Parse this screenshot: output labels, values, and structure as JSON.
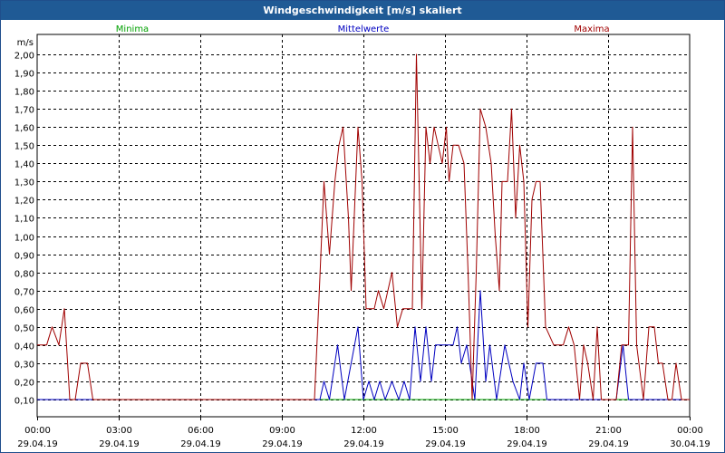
{
  "window": {
    "title": "Windgeschwindigkeit [m/s] skaliert"
  },
  "colors": {
    "minima": "#00a000",
    "mittel": "#0000c0",
    "maxima": "#a00000",
    "grid": "#000000",
    "titlebar": "#1f5a95"
  },
  "chart_data": {
    "type": "line",
    "title": "Windgeschwindigkeit [m/s] skaliert",
    "ylabel": "m/s",
    "ylim": [
      0,
      2.05
    ],
    "xlim": [
      0,
      24
    ],
    "grid": true,
    "legend_placement": "top",
    "y_ticks": [
      "0,10",
      "0,20",
      "0,30",
      "0,40",
      "0,50",
      "0,60",
      "0,70",
      "0,80",
      "0,90",
      "1,00",
      "1,10",
      "1,20",
      "1,30",
      "1,40",
      "1,50",
      "1,60",
      "1,70",
      "1,80",
      "1,90",
      "2,00"
    ],
    "x_ticks": [
      {
        "time": "00:00",
        "date": "29.04.19"
      },
      {
        "time": "03:00",
        "date": "29.04.19"
      },
      {
        "time": "06:00",
        "date": "29.04.19"
      },
      {
        "time": "09:00",
        "date": "29.04.19"
      },
      {
        "time": "12:00",
        "date": "29.04.19"
      },
      {
        "time": "15:00",
        "date": "29.04.19"
      },
      {
        "time": "18:00",
        "date": "29.04.19"
      },
      {
        "time": "21:00",
        "date": "29.04.19"
      },
      {
        "time": "00:00",
        "date": "30.04.19"
      }
    ],
    "series": [
      {
        "name": "Minima",
        "color": "#00a000",
        "points": [
          [
            0,
            0.1
          ],
          [
            24,
            0.1
          ]
        ]
      },
      {
        "name": "Mittelwerte",
        "color": "#0000c0",
        "points": [
          [
            0,
            0.1
          ],
          [
            10.4,
            0.1
          ],
          [
            10.55,
            0.2
          ],
          [
            10.75,
            0.1
          ],
          [
            11.05,
            0.4
          ],
          [
            11.3,
            0.1
          ],
          [
            11.55,
            0.3
          ],
          [
            11.8,
            0.5
          ],
          [
            12.0,
            0.1
          ],
          [
            12.2,
            0.2
          ],
          [
            12.4,
            0.1
          ],
          [
            12.6,
            0.2
          ],
          [
            12.8,
            0.1
          ],
          [
            13.05,
            0.2
          ],
          [
            13.3,
            0.1
          ],
          [
            13.5,
            0.2
          ],
          [
            13.7,
            0.1
          ],
          [
            13.9,
            0.5
          ],
          [
            14.1,
            0.2
          ],
          [
            14.3,
            0.5
          ],
          [
            14.5,
            0.2
          ],
          [
            14.65,
            0.4
          ],
          [
            15.3,
            0.4
          ],
          [
            15.45,
            0.5
          ],
          [
            15.6,
            0.3
          ],
          [
            15.8,
            0.4
          ],
          [
            16.1,
            0.1
          ],
          [
            16.3,
            0.7
          ],
          [
            16.5,
            0.2
          ],
          [
            16.65,
            0.4
          ],
          [
            16.9,
            0.1
          ],
          [
            17.2,
            0.4
          ],
          [
            17.5,
            0.2
          ],
          [
            17.75,
            0.1
          ],
          [
            17.9,
            0.3
          ],
          [
            18.1,
            0.1
          ],
          [
            18.35,
            0.3
          ],
          [
            18.6,
            0.3
          ],
          [
            18.75,
            0.1
          ],
          [
            21.3,
            0.1
          ],
          [
            21.55,
            0.4
          ],
          [
            21.75,
            0.1
          ],
          [
            24,
            0.1
          ]
        ]
      },
      {
        "name": "Maxima",
        "color": "#a00000",
        "points": [
          [
            0,
            0.4
          ],
          [
            0.35,
            0.4
          ],
          [
            0.55,
            0.5
          ],
          [
            0.8,
            0.4
          ],
          [
            1.0,
            0.6
          ],
          [
            1.2,
            0.1
          ],
          [
            1.4,
            0.1
          ],
          [
            1.6,
            0.3
          ],
          [
            1.85,
            0.3
          ],
          [
            2.05,
            0.1
          ],
          [
            10.2,
            0.1
          ],
          [
            10.35,
            0.6
          ],
          [
            10.55,
            1.3
          ],
          [
            10.75,
            0.9
          ],
          [
            10.95,
            1.3
          ],
          [
            11.1,
            1.5
          ],
          [
            11.25,
            1.6
          ],
          [
            11.45,
            1.1
          ],
          [
            11.55,
            0.7
          ],
          [
            11.8,
            1.6
          ],
          [
            11.95,
            1.3
          ],
          [
            12.1,
            0.6
          ],
          [
            12.4,
            0.6
          ],
          [
            12.55,
            0.7
          ],
          [
            12.75,
            0.6
          ],
          [
            13.05,
            0.8
          ],
          [
            13.25,
            0.5
          ],
          [
            13.45,
            0.6
          ],
          [
            13.8,
            0.6
          ],
          [
            13.95,
            2.0
          ],
          [
            14.15,
            0.6
          ],
          [
            14.3,
            1.6
          ],
          [
            14.45,
            1.4
          ],
          [
            14.6,
            1.6
          ],
          [
            14.75,
            1.5
          ],
          [
            14.9,
            1.4
          ],
          [
            15.05,
            1.6
          ],
          [
            15.15,
            1.3
          ],
          [
            15.3,
            1.5
          ],
          [
            15.5,
            1.5
          ],
          [
            15.7,
            1.4
          ],
          [
            15.85,
            0.8
          ],
          [
            16.0,
            0.1
          ],
          [
            16.15,
            0.8
          ],
          [
            16.3,
            1.7
          ],
          [
            16.5,
            1.6
          ],
          [
            16.7,
            1.4
          ],
          [
            16.85,
            1.0
          ],
          [
            17.0,
            0.7
          ],
          [
            17.1,
            1.3
          ],
          [
            17.3,
            1.3
          ],
          [
            17.45,
            1.7
          ],
          [
            17.6,
            1.1
          ],
          [
            17.75,
            1.5
          ],
          [
            17.9,
            1.3
          ],
          [
            18.05,
            0.5
          ],
          [
            18.2,
            1.2
          ],
          [
            18.35,
            1.3
          ],
          [
            18.5,
            1.3
          ],
          [
            18.7,
            0.5
          ],
          [
            19.0,
            0.4
          ],
          [
            19.35,
            0.4
          ],
          [
            19.55,
            0.5
          ],
          [
            19.75,
            0.4
          ],
          [
            19.95,
            0.1
          ],
          [
            20.1,
            0.4
          ],
          [
            20.25,
            0.3
          ],
          [
            20.45,
            0.1
          ],
          [
            20.6,
            0.5
          ],
          [
            20.75,
            0.1
          ],
          [
            21.3,
            0.1
          ],
          [
            21.5,
            0.4
          ],
          [
            21.75,
            0.4
          ],
          [
            21.9,
            1.6
          ],
          [
            22.05,
            0.4
          ],
          [
            22.3,
            0.1
          ],
          [
            22.5,
            0.5
          ],
          [
            22.7,
            0.5
          ],
          [
            22.85,
            0.3
          ],
          [
            23.0,
            0.3
          ],
          [
            23.2,
            0.1
          ],
          [
            23.35,
            0.1
          ],
          [
            23.5,
            0.3
          ],
          [
            23.7,
            0.1
          ],
          [
            24,
            0.1
          ]
        ]
      }
    ]
  }
}
